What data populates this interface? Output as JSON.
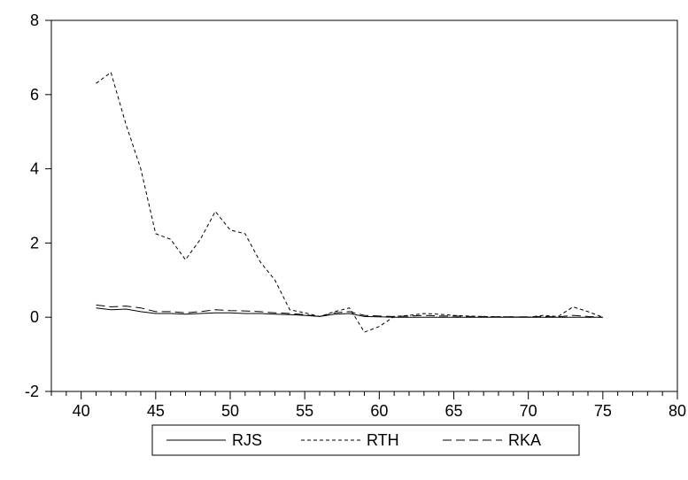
{
  "chart_data": {
    "type": "line",
    "title": "",
    "xlabel": "",
    "ylabel": "",
    "xlim": [
      38,
      80
    ],
    "ylim": [
      -2,
      8
    ],
    "xticks": [
      40,
      45,
      50,
      55,
      60,
      65,
      70,
      75,
      80
    ],
    "yticks": [
      -2,
      0,
      2,
      4,
      6,
      8
    ],
    "grid": false,
    "legend_position": "bottom",
    "x": [
      41,
      42,
      43,
      44,
      45,
      46,
      47,
      48,
      49,
      50,
      51,
      52,
      53,
      54,
      55,
      56,
      57,
      58,
      59,
      60,
      61,
      62,
      63,
      64,
      65,
      66,
      67,
      68,
      69,
      70,
      71,
      72,
      73,
      74,
      75
    ],
    "series": [
      {
        "name": "RJS",
        "dash": "solid",
        "values": [
          0.25,
          0.2,
          0.22,
          0.15,
          0.1,
          0.1,
          0.08,
          0.1,
          0.12,
          0.12,
          0.1,
          0.1,
          0.08,
          0.07,
          0.05,
          0.02,
          0.08,
          0.1,
          0.02,
          0.01,
          0.0,
          0.0,
          0.0,
          0.0,
          0.0,
          0.0,
          0.0,
          0.0,
          0.0,
          0.0,
          0.0,
          0.0,
          0.0,
          0.0,
          0.0
        ]
      },
      {
        "name": "RTH",
        "dash": "short",
        "values": [
          6.3,
          6.6,
          5.2,
          4.0,
          2.25,
          2.1,
          1.55,
          2.1,
          2.85,
          2.35,
          2.25,
          1.5,
          1.0,
          0.2,
          0.12,
          0.02,
          0.15,
          0.25,
          -0.4,
          -0.25,
          0.02,
          0.05,
          0.1,
          0.08,
          0.05,
          0.03,
          0.02,
          0.01,
          0.01,
          0.0,
          0.05,
          0.02,
          0.28,
          0.15,
          0.0
        ]
      },
      {
        "name": "RKA",
        "dash": "long",
        "values": [
          0.33,
          0.28,
          0.3,
          0.25,
          0.15,
          0.15,
          0.12,
          0.15,
          0.2,
          0.18,
          0.17,
          0.15,
          0.12,
          0.1,
          0.07,
          0.02,
          0.12,
          0.15,
          0.05,
          0.03,
          0.02,
          0.03,
          0.05,
          0.03,
          0.03,
          0.02,
          0.02,
          0.01,
          0.01,
          0.01,
          0.02,
          0.01,
          0.05,
          0.02,
          0.0
        ]
      }
    ]
  },
  "colors": {
    "line": "#000000",
    "background": "#ffffff"
  }
}
